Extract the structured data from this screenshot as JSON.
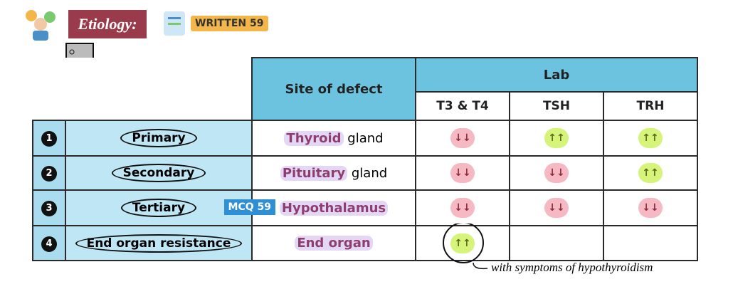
{
  "header": {
    "title": "Etiology:",
    "badge": "WRITTEN 59"
  },
  "table": {
    "head": {
      "site": "Site of defect",
      "lab": "Lab",
      "columns": [
        "T3 & T4",
        "TSH",
        "TRH"
      ]
    },
    "rows": [
      {
        "number": "1",
        "type": "Primary",
        "site": {
          "highlight": "Thyroid",
          "rest": "gland"
        },
        "labs": [
          "↓↓",
          "↑↑",
          "↑↑"
        ]
      },
      {
        "number": "2",
        "type": "Secondary",
        "site": {
          "highlight": "Pituitary",
          "rest": "gland"
        },
        "labs": [
          "↓↓",
          "↓↓",
          "↑↑"
        ]
      },
      {
        "number": "3",
        "type": "Tertiary",
        "badge": "MCQ 59",
        "site": {
          "highlight": "Hypothalamus"
        },
        "labs": [
          "↓↓",
          "↓↓",
          "↓↓"
        ]
      },
      {
        "number": "4",
        "type": "End organ resistance",
        "site": {
          "highlight": "End organ"
        },
        "labs": [
          "↑↑"
        ]
      }
    ]
  },
  "annotation": "with symptoms of hypothyroidism"
}
